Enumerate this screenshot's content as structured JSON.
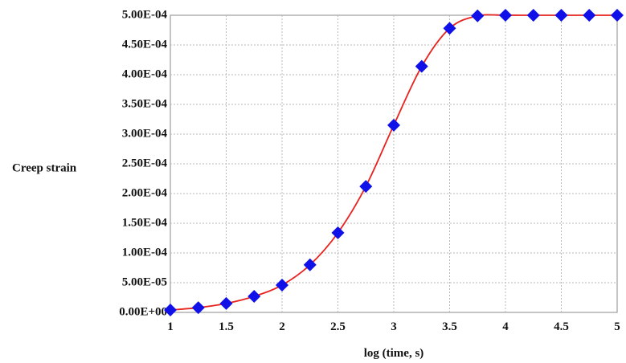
{
  "chart_data": {
    "type": "line",
    "xlabel": "log (time, s)",
    "ylabel": "Creep strain",
    "xlim": [
      1,
      5
    ],
    "ylim": [
      0,
      0.0005
    ],
    "grid": true,
    "x_ticks": [
      "1",
      "1.5",
      "2",
      "2.5",
      "3",
      "3.5",
      "4",
      "4.5",
      "5"
    ],
    "y_ticks": [
      "0.00E+00",
      "5.00E-05",
      "1.00E-04",
      "1.50E-04",
      "2.00E-04",
      "2.50E-04",
      "3.00E-04",
      "3.50E-04",
      "4.00E-04",
      "4.50E-04",
      "5.00E-04"
    ],
    "series": [
      {
        "x": [
          1,
          1.25,
          1.5,
          1.75,
          2,
          2.25,
          2.5,
          2.75,
          3,
          3.25,
          3.5,
          3.75,
          4,
          4.25,
          4.5,
          4.75,
          5
        ],
        "y": [
          4e-06,
          8e-06,
          1.5e-05,
          2.7e-05,
          4.6e-05,
          8e-05,
          0.000134,
          0.000212,
          0.000315,
          0.000414,
          0.000478,
          0.000499,
          0.0005,
          0.0005,
          0.0005,
          0.0005,
          0.0005
        ],
        "line_color": "#e8231e",
        "marker_color": "#1010e8",
        "marker": "diamond"
      }
    ]
  }
}
